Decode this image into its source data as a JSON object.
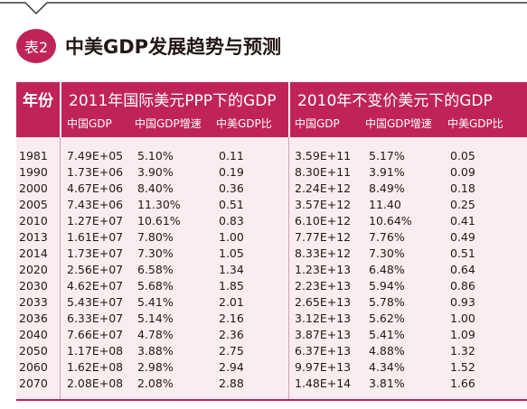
{
  "title": {
    "badge": "表2",
    "text": "中美GDP发展趋势与预测"
  },
  "table": {
    "year_header": "年份",
    "group1": {
      "title": "2011年国际美元PPP下的GDP",
      "cols": [
        "中国GDP",
        "中国GDP增速",
        "中美GDP比"
      ]
    },
    "group2": {
      "title": "2010年不变价美元下的GDP",
      "cols": [
        "中国GDP",
        "中国GDP增速",
        "中美GDP比"
      ]
    },
    "rows": [
      [
        "1981",
        "7.49E+05",
        "5.10%",
        "0.11",
        "3.59E+11",
        "5.17%",
        "0.05"
      ],
      [
        "1990",
        "1.73E+06",
        "3.90%",
        "0.19",
        "8.30E+11",
        "3.91%",
        "0.09"
      ],
      [
        "2000",
        "4.67E+06",
        "8.40%",
        "0.36",
        "2.24E+12",
        "8.49%",
        "0.18"
      ],
      [
        "2005",
        "7.43E+06",
        "11.30%",
        "0.51",
        "3.57E+12",
        "11.40",
        "0.25"
      ],
      [
        "2010",
        "1.27E+07",
        "10.61%",
        "0.83",
        "6.10E+12",
        "10.64%",
        "0.41"
      ],
      [
        "2013",
        "1.61E+07",
        "7.80%",
        "1.00",
        "7.77E+12",
        "7.76%",
        "0.49"
      ],
      [
        "2014",
        "1.73E+07",
        "7.30%",
        "1.05",
        "8.33E+12",
        "7.30%",
        "0.51"
      ],
      [
        "2020",
        "2.56E+07",
        "6.58%",
        "1.34",
        "1.23E+13",
        "6.48%",
        "0.64"
      ],
      [
        "2030",
        "4.62E+07",
        "5.68%",
        "1.85",
        "2.23E+13",
        "5.94%",
        "0.86"
      ],
      [
        "2033",
        "5.43E+07",
        "5.41%",
        "2.01",
        "2.65E+13",
        "5.78%",
        "0.93"
      ],
      [
        "2036",
        "6.33E+07",
        "5.14%",
        "2.16",
        "3.12E+13",
        "5.62%",
        "1.00"
      ],
      [
        "2040",
        "7.66E+07",
        "4.78%",
        "2.36",
        "3.87E+13",
        "5.41%",
        "1.09"
      ],
      [
        "2050",
        "1.17E+08",
        "3.88%",
        "2.75",
        "6.37E+13",
        "4.88%",
        "1.32"
      ],
      [
        "2060",
        "1.62E+08",
        "2.98%",
        "2.94",
        "9.97E+13",
        "4.34%",
        "1.52"
      ],
      [
        "2070",
        "2.08E+08",
        "2.08%",
        "2.88",
        "1.48E+14",
        "3.81%",
        "1.66"
      ]
    ]
  },
  "colors": {
    "accent": "#c0235a",
    "body_bg": "#fbecef"
  }
}
